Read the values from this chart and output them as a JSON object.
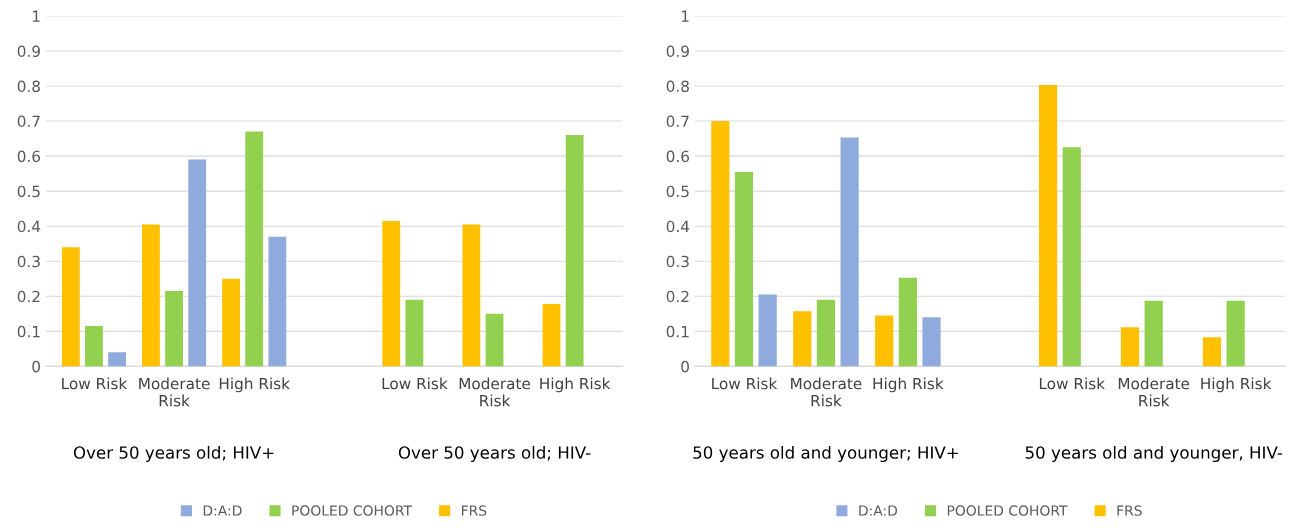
{
  "chart_data": [
    {
      "type": "bar",
      "categories": [
        "Low Risk",
        "Moderate\nRisk",
        "High Risk",
        null,
        "Low Risk",
        "Moderate\nRisk",
        "High Risk"
      ],
      "series": [
        {
          "name": "FRS",
          "color": "#ffc000",
          "values": [
            0.34,
            0.405,
            0.25,
            null,
            0.415,
            0.405,
            0.178
          ]
        },
        {
          "name": "POOLED COHORT",
          "color": "#92d050",
          "values": [
            0.115,
            0.215,
            0.67,
            null,
            0.19,
            0.15,
            0.66
          ]
        },
        {
          "name": "D:A:D",
          "color": "#8faadc",
          "values": [
            0.04,
            0.59,
            0.37,
            null,
            null,
            null,
            null
          ]
        }
      ],
      "ylim": [
        0,
        1
      ],
      "yticks": [
        0,
        0.1,
        0.2,
        0.3,
        0.4,
        0.5,
        0.6,
        0.7,
        0.8,
        0.9,
        1
      ],
      "grid": "y",
      "legend": "bottom",
      "annotations": [
        "Over 50 years old; HIV+",
        "Over 50 years old; HIV-"
      ]
    },
    {
      "type": "bar",
      "categories": [
        "Low Risk",
        "Moderate\nRisk",
        "High Risk",
        null,
        "Low Risk",
        "Moderate\nRisk",
        "High Risk"
      ],
      "series": [
        {
          "name": "FRS",
          "color": "#ffc000",
          "values": [
            0.7,
            0.157,
            0.145,
            null,
            0.803,
            0.112,
            0.083
          ]
        },
        {
          "name": "POOLED COHORT",
          "color": "#92d050",
          "values": [
            0.555,
            0.19,
            0.253,
            null,
            0.625,
            0.187,
            0.187
          ]
        },
        {
          "name": "D:A:D",
          "color": "#8faadc",
          "values": [
            0.205,
            0.653,
            0.14,
            null,
            null,
            null,
            null
          ]
        }
      ],
      "ylim": [
        0,
        1
      ],
      "yticks": [
        0,
        0.1,
        0.2,
        0.3,
        0.4,
        0.5,
        0.6,
        0.7,
        0.8,
        0.9,
        1
      ],
      "grid": "y",
      "legend": "bottom",
      "annotations": [
        "50 years old and younger; HIV+",
        "50 years old and younger, HIV-"
      ]
    }
  ]
}
